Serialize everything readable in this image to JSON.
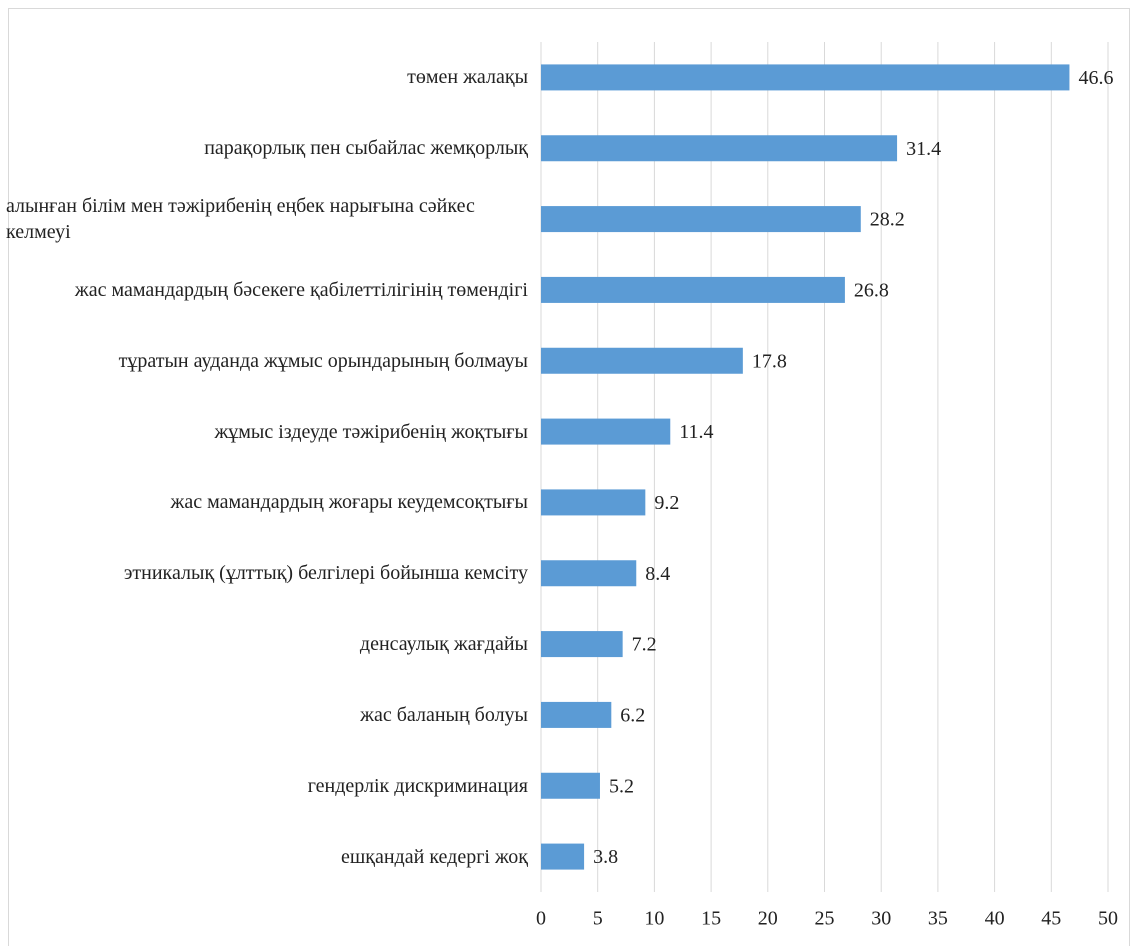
{
  "chart_data": {
    "type": "hbar",
    "categories": [
      "төмен жалақы",
      "парақорлық пен сыбайлас жемқорлық",
      "алынған білім мен тәжірибенің еңбек нарығына сәйкес келмеуі",
      "жас мамандардың бәсекеге қабілеттілігінің төмендігі",
      "тұратын ауданда жұмыс орындарының болмауы",
      "жұмыс іздеуде тәжірибенің жоқтығы",
      "жас мамандардың жоғары кеудемсоқтығы",
      "этникалық (ұлттық) белгілері бойынша кемсіту",
      "денсаулық жағдайы",
      "жас баланың болуы",
      "гендерлік дискриминация",
      "ешқандай кедергі жоқ"
    ],
    "values": [
      46.6,
      31.4,
      28.2,
      26.8,
      17.8,
      11.4,
      9.2,
      8.4,
      7.2,
      6.2,
      5.2,
      3.8
    ],
    "color": "#5b9bd5",
    "xlim": [
      0,
      50
    ],
    "xticks": [
      0,
      5,
      10,
      15,
      20,
      25,
      30,
      35,
      40,
      45,
      50
    ],
    "grid": true
  }
}
